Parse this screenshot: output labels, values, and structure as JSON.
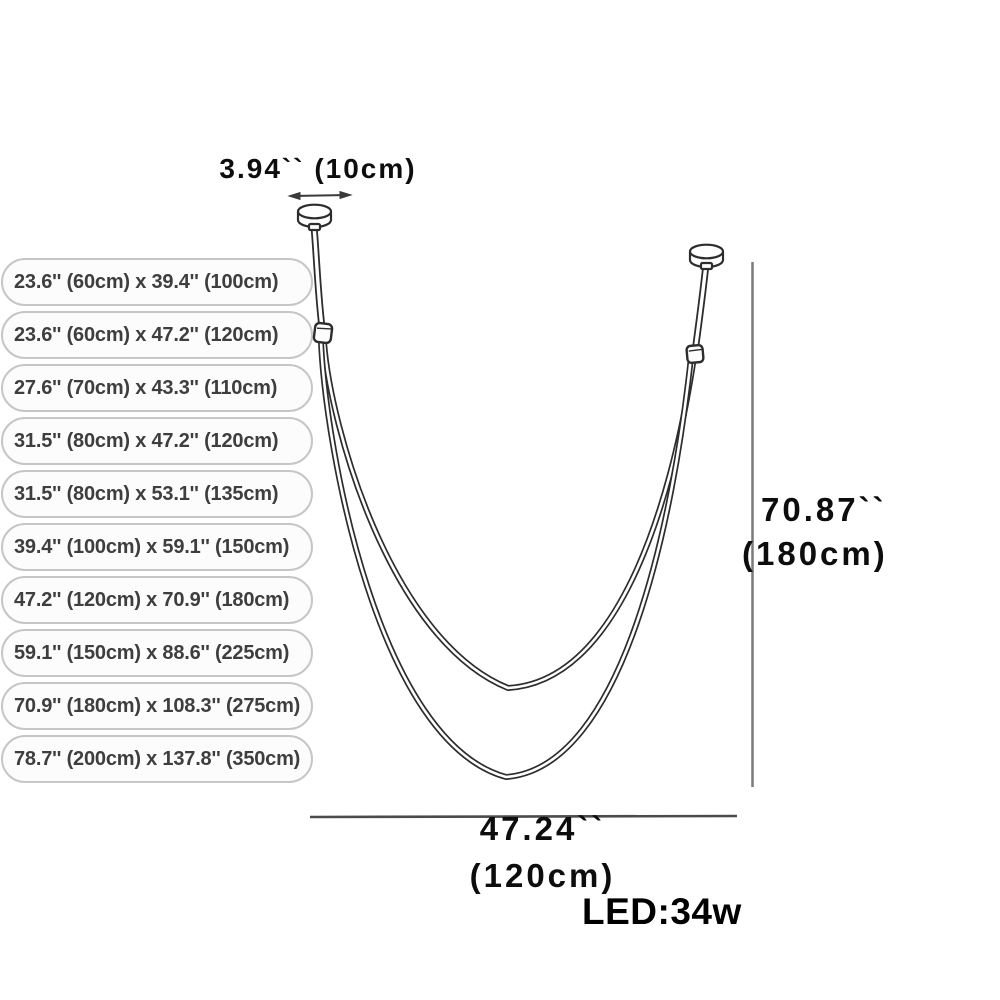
{
  "page": {
    "background": "#ffffff",
    "line_color": "#2d2d2d",
    "dimension_line_color": "#6f6f6f"
  },
  "size_options": {
    "items": [
      "23.6'' (60cm) x 39.4'' (100cm)",
      "23.6'' (60cm) x 47.2'' (120cm)",
      "27.6'' (70cm) x 43.3'' (110cm)",
      "31.5'' (80cm) x 47.2'' (120cm)",
      "31.5'' (80cm) x 53.1'' (135cm)",
      "39.4'' (100cm) x 59.1'' (150cm)",
      "47.2'' (120cm) x 70.9'' (180cm)",
      "59.1'' (150cm) x 88.6'' (225cm)",
      "70.9'' (180cm) x 108.3'' (275cm)",
      "78.7'' (200cm) x 137.8'' (350cm)"
    ]
  },
  "diagram": {
    "canopy_width_label": "3.94`` (10cm)",
    "height_label_line1": "70.87``",
    "height_label_line2": "(180cm)",
    "width_label_line1": "47.24``",
    "width_label_line2": "(120cm)",
    "power_label": "LED:34w"
  }
}
